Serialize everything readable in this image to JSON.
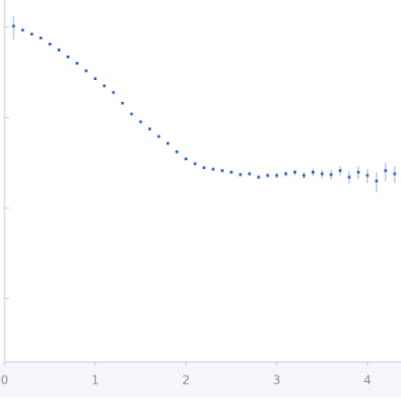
{
  "chart_data": {
    "type": "scatter",
    "color": "#2f5fc4",
    "log_y": true,
    "x": [
      0.1,
      0.2,
      0.3,
      0.4,
      0.5,
      0.6,
      0.7,
      0.8,
      0.9,
      1.0,
      1.1,
      1.2,
      1.3,
      1.4,
      1.5,
      1.6,
      1.7,
      1.8,
      1.9,
      2.0,
      2.1,
      2.2,
      2.3,
      2.4,
      2.5,
      2.6,
      2.7,
      2.8,
      2.9,
      3.0,
      3.1,
      3.2,
      3.3,
      3.4,
      3.5,
      3.6,
      3.7,
      3.8,
      3.9,
      4.0,
      4.1,
      4.2,
      4.3
    ],
    "values": [
      10.3,
      9.3,
      8.4,
      7.6,
      6.5,
      5.6,
      4.7,
      4.0,
      3.3,
      2.7,
      2.25,
      1.9,
      1.45,
      1.1,
      0.9,
      0.75,
      0.62,
      0.52,
      0.42,
      0.35,
      0.31,
      0.28,
      0.27,
      0.26,
      0.25,
      0.235,
      0.24,
      0.22,
      0.23,
      0.23,
      0.24,
      0.25,
      0.23,
      0.25,
      0.24,
      0.235,
      0.26,
      0.22,
      0.25,
      0.23,
      0.2,
      0.26,
      0.24
    ],
    "errors": [
      3,
      0.1,
      0.08,
      0.07,
      0.06,
      0.05,
      0.04,
      0.04,
      0.03,
      0.03,
      0.03,
      0.03,
      0.02,
      0.02,
      0.02,
      0.015,
      0.012,
      0.01,
      0.01,
      0.008,
      0.008,
      0.008,
      0.008,
      0.009,
      0.01,
      0.01,
      0.012,
      0.012,
      0.014,
      0.015,
      0.016,
      0.018,
      0.02,
      0.022,
      0.025,
      0.028,
      0.03,
      0.035,
      0.04,
      0.04,
      0.05,
      0.06,
      0.05
    ],
    "xlim": [
      0,
      4.37
    ],
    "xticks": [
      0,
      1,
      2,
      3,
      4
    ],
    "ylim": [
      0.002,
      20
    ],
    "yticks": [
      0.01,
      0.1,
      1,
      10
    ]
  }
}
